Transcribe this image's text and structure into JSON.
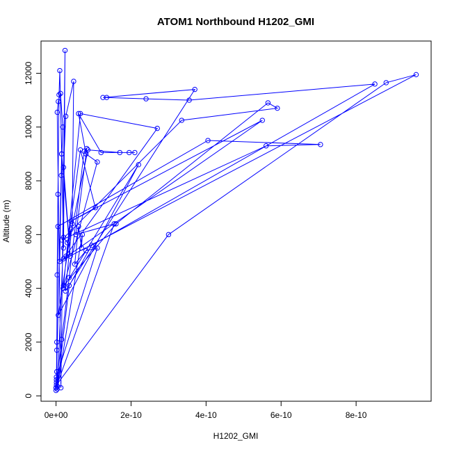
{
  "chart_data": {
    "type": "scatter",
    "title": "ATOM1 Northbound H1202_GMI",
    "xlabel": "H1202_GMI",
    "ylabel": "Altitude (m)",
    "xlim": [
      -4e-11,
      1e-09
    ],
    "ylim": [
      -200,
      13200
    ],
    "x_ticks": [
      0,
      2e-10,
      4e-10,
      6e-10,
      8e-10
    ],
    "x_tick_labels": [
      "0e+00",
      "2e-10",
      "4e-10",
      "6e-10",
      "8e-10"
    ],
    "y_ticks": [
      0,
      2000,
      4000,
      6000,
      8000,
      10000,
      12000
    ],
    "y_tick_labels": [
      "0",
      "2000",
      "4000",
      "6000",
      "8000",
      "10000",
      "12000"
    ],
    "grid": false,
    "series": [
      {
        "color": "#0000ff",
        "marker": "open-circle",
        "connected": true,
        "x": [
          0,
          1e-12,
          2e-12,
          3e-12,
          5e-12,
          8e-12,
          1e-11,
          1.5e-11,
          2e-11,
          2.4e-11,
          1.3e-11,
          3.2e-12,
          6e-12,
          1.2e-11,
          1.8e-11,
          1.4e-11,
          1e-11,
          9.6e-10,
          8.8e-10,
          3e-10,
          1e-12,
          1.5e-11,
          3.8e-11,
          2e-11,
          2.6e-11,
          4.7e-11,
          4.3e-11,
          2.5e-11,
          3.7e-10,
          1.25e-10,
          1.35e-10,
          2.4e-10,
          3.55e-10,
          8.5e-10,
          9.5e-11,
          3.5e-11,
          3e-12,
          2e-12,
          1e-12,
          5e-12,
          4.05e-10,
          7.05e-10,
          5.6e-10,
          1.5e-11,
          3.35e-10,
          5.9e-10,
          5.65e-10,
          1.6e-10,
          2e-11,
          6.5e-11,
          2.7e-10,
          2e-11,
          5.5e-10,
          4e-11,
          1.05e-10,
          6.5e-11,
          2.7e-11,
          8.5e-11,
          1.7e-10,
          2.1e-10,
          1.95e-10,
          1.2e-10,
          6e-11,
          8e-11,
          1.1e-10,
          1.9e-11,
          2.2e-10,
          6e-12,
          4e-11,
          3e-11,
          2e-11,
          4e-12,
          7e-11,
          6.8e-11,
          6e-11,
          5e-11,
          8e-11,
          1.1e-10,
          1e-12,
          0,
          1.55e-10,
          5.3e-11,
          8.2e-11,
          7.5e-11,
          3.5e-11,
          1.5e-11,
          0,
          2e-12
        ],
        "y": [
          200,
          600,
          1700,
          4500,
          7500,
          11200,
          12100,
          9000,
          5500,
          12850,
          300,
          10550,
          10950,
          11250,
          10000,
          8200,
          5000,
          11950,
          11650,
          6000,
          400,
          9000,
          5200,
          8500,
          10400,
          11700,
          6400,
          3900,
          11400,
          11100,
          11100,
          11050,
          11000,
          11600,
          5600,
          4100,
          250,
          2000,
          500,
          6300,
          9500,
          9350,
          9300,
          5800,
          10250,
          10700,
          10900,
          6400,
          4100,
          10500,
          9950,
          5100,
          10250,
          6500,
          7000,
          9150,
          5200,
          9150,
          9050,
          9050,
          9050,
          9050,
          10500,
          9000,
          8700,
          4000,
          8600,
          3000,
          6200,
          5700,
          5900,
          350,
          6000,
          5500,
          6300,
          4900,
          5400,
          5500,
          700,
          300,
          6400,
          6000,
          9200,
          9100,
          4400,
          2100,
          300,
          900
        ]
      }
    ]
  }
}
